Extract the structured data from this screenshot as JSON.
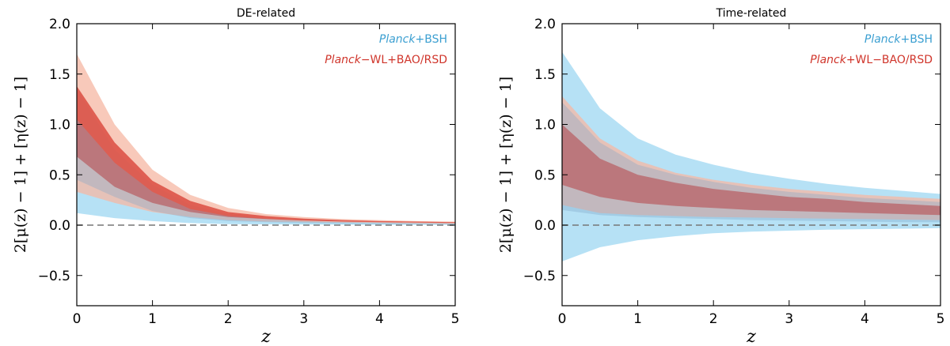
{
  "colors": {
    "blue": "#a9dcf3",
    "blue_text": "#3b9fd1",
    "red_outer": "#f5b7a3",
    "red_inner": "#d9453a",
    "red_text": "#d0352b",
    "zero_line": "#777777"
  },
  "chart_data": [
    {
      "type": "area",
      "title": "DE-related",
      "xlabel": "z",
      "ylabel": "2[μ(z) − 1] + [η(z) − 1]",
      "xlim": [
        0,
        5
      ],
      "ylim": [
        -0.8,
        2.0
      ],
      "xticks": [
        "0",
        "1",
        "2",
        "3",
        "4",
        "5"
      ],
      "yticks": [
        "−0.5",
        "0.0",
        "0.5",
        "1.0",
        "1.5",
        "2.0"
      ],
      "legend_placement": "top-right",
      "legend": [
        {
          "italic": "Planck",
          "rest": "+BSH",
          "color": "blue"
        },
        {
          "italic": "Planck",
          "rest": "−WL+BAO/RSD",
          "color": "red"
        }
      ],
      "reference_line": 0.0,
      "x": [
        0,
        0.5,
        1.0,
        1.5,
        2.0,
        2.5,
        3.0,
        3.5,
        4.0,
        4.5,
        5.0
      ],
      "series": [
        {
          "name": "Planck+BSH",
          "color": "blue",
          "level": "outer",
          "lower": [
            0.12,
            0.07,
            0.04,
            0.02,
            0.01,
            0.008,
            0.006,
            0.005,
            0.004,
            0.003,
            0.003
          ],
          "upper": [
            1.35,
            0.75,
            0.4,
            0.2,
            0.11,
            0.07,
            0.05,
            0.04,
            0.03,
            0.025,
            0.02
          ]
        },
        {
          "name": "Planck+BSH",
          "color": "blue",
          "level": "inner",
          "lower": [
            0.45,
            0.28,
            0.14,
            0.07,
            0.04,
            0.03,
            0.02,
            0.015,
            0.012,
            0.01,
            0.01
          ],
          "upper": [
            1.05,
            0.62,
            0.33,
            0.16,
            0.09,
            0.06,
            0.04,
            0.03,
            0.025,
            0.02,
            0.018
          ]
        },
        {
          "name": "Planck−WL+BAO/RSD",
          "color": "red",
          "level": "outer",
          "lower": [
            0.33,
            0.22,
            0.13,
            0.08,
            0.05,
            0.035,
            0.03,
            0.025,
            0.02,
            0.015,
            0.012
          ],
          "upper": [
            1.7,
            1.0,
            0.55,
            0.3,
            0.17,
            0.11,
            0.08,
            0.06,
            0.05,
            0.04,
            0.035
          ]
        },
        {
          "name": "Planck−WL+BAO/RSD",
          "color": "red",
          "level": "inner",
          "lower": [
            0.68,
            0.38,
            0.22,
            0.13,
            0.08,
            0.06,
            0.045,
            0.035,
            0.03,
            0.025,
            0.02
          ],
          "upper": [
            1.38,
            0.82,
            0.44,
            0.24,
            0.13,
            0.09,
            0.065,
            0.05,
            0.04,
            0.035,
            0.03
          ]
        }
      ]
    },
    {
      "type": "area",
      "title": "Time-related",
      "xlabel": "z",
      "ylabel": "2[μ(z) − 1] + [η(z) − 1]",
      "xlim": [
        0,
        5
      ],
      "ylim": [
        -0.8,
        2.0
      ],
      "xticks": [
        "0",
        "1",
        "2",
        "3",
        "4",
        "5"
      ],
      "yticks": [
        "−0.5",
        "0.0",
        "0.5",
        "1.0",
        "1.5",
        "2.0"
      ],
      "legend_placement": "top-right",
      "legend": [
        {
          "italic": "Planck",
          "rest": "+BSH",
          "color": "blue"
        },
        {
          "italic": "Planck",
          "rest": "+WL−BAO/RSD",
          "color": "red"
        }
      ],
      "reference_line": 0.0,
      "x": [
        0,
        0.5,
        1.0,
        1.5,
        2.0,
        2.5,
        3.0,
        3.5,
        4.0,
        4.5,
        5.0
      ],
      "series": [
        {
          "name": "Planck+BSH",
          "color": "blue",
          "level": "outer",
          "lower": [
            -0.36,
            -0.22,
            -0.15,
            -0.11,
            -0.08,
            -0.065,
            -0.055,
            -0.045,
            -0.04,
            -0.035,
            -0.03
          ],
          "upper": [
            1.72,
            1.16,
            0.86,
            0.7,
            0.6,
            0.52,
            0.46,
            0.41,
            0.37,
            0.34,
            0.31
          ]
        },
        {
          "name": "Planck+BSH",
          "color": "blue",
          "level": "inner",
          "lower": [
            0.15,
            0.1,
            0.08,
            0.07,
            0.06,
            0.05,
            0.045,
            0.04,
            0.035,
            0.03,
            0.03
          ],
          "upper": [
            1.22,
            0.82,
            0.6,
            0.5,
            0.43,
            0.37,
            0.33,
            0.3,
            0.27,
            0.25,
            0.23
          ]
        },
        {
          "name": "Planck+WL−BAO/RSD",
          "color": "red",
          "level": "outer",
          "lower": [
            0.2,
            0.12,
            0.1,
            0.09,
            0.08,
            0.075,
            0.07,
            0.065,
            0.06,
            0.055,
            0.05
          ],
          "upper": [
            1.28,
            0.86,
            0.64,
            0.52,
            0.45,
            0.4,
            0.36,
            0.33,
            0.3,
            0.28,
            0.26
          ]
        },
        {
          "name": "Planck+WL−BAO/RSD",
          "color": "red",
          "level": "inner",
          "lower": [
            0.4,
            0.28,
            0.22,
            0.19,
            0.17,
            0.15,
            0.14,
            0.13,
            0.12,
            0.11,
            0.1
          ],
          "upper": [
            1.0,
            0.66,
            0.5,
            0.42,
            0.36,
            0.32,
            0.28,
            0.26,
            0.23,
            0.21,
            0.19
          ]
        }
      ]
    }
  ]
}
